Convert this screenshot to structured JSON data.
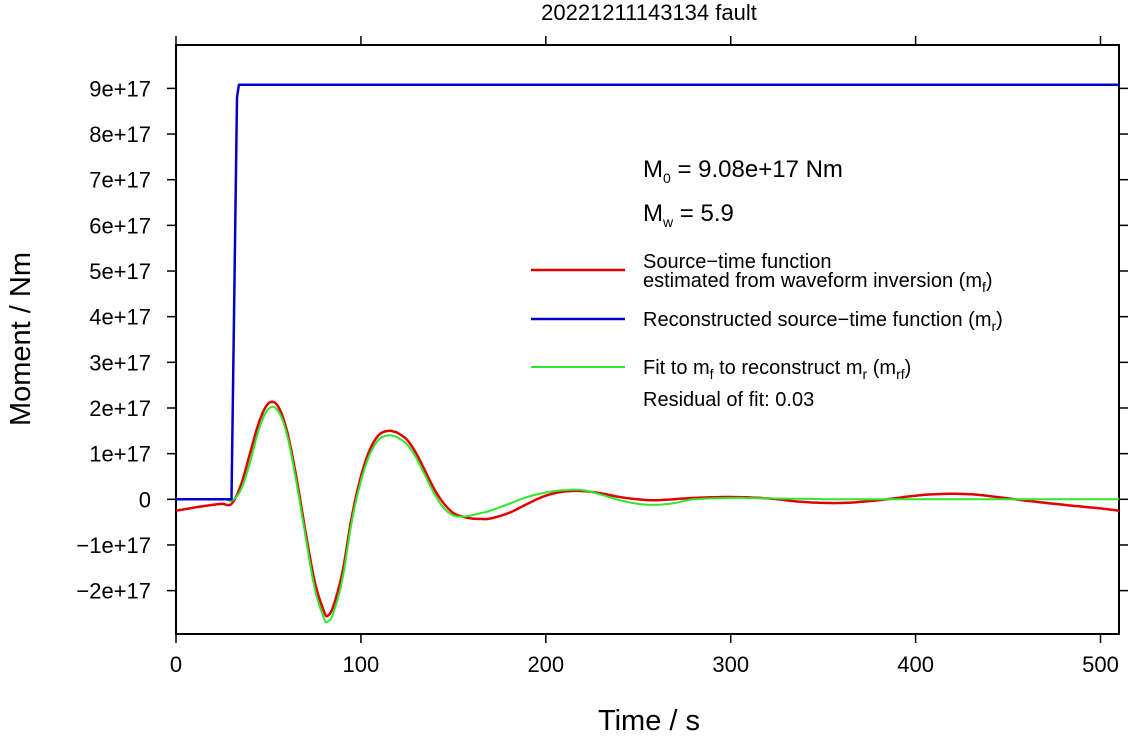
{
  "chart_data": {
    "type": "line",
    "title": "20221211143134 fault",
    "xlabel": "Time / s",
    "ylabel": "Moment / Nm",
    "xlim": [
      0,
      510
    ],
    "ylim": [
      -2.95e+17,
      9.95e+17
    ],
    "x_ticks": [
      0,
      100,
      200,
      300,
      400,
      500
    ],
    "x_tick_labels": [
      "0",
      "100",
      "200",
      "300",
      "400",
      "500"
    ],
    "y_ticks": [
      -2e+17,
      -1e+17,
      0,
      1e+17,
      2e+17,
      3e+17,
      4e+17,
      5e+17,
      6e+17,
      7e+17,
      8e+17,
      9e+17
    ],
    "y_tick_labels": [
      "−2e+17",
      "−1e+17",
      "0",
      "1e+17",
      "2e+17",
      "3e+17",
      "4e+17",
      "5e+17",
      "6e+17",
      "7e+17",
      "8e+17",
      "9e+17"
    ],
    "grid": false,
    "legend_position": "right",
    "annotations": {
      "m0": {
        "symbol": "M",
        "sub": "0",
        "text": " = 9.08e+17 Nm"
      },
      "mw": {
        "symbol": "M",
        "sub": "w",
        "text": " = 5.9"
      },
      "residual": "Residual of fit: 0.03"
    },
    "series": [
      {
        "key": "mf",
        "name_line1": "Source−time function",
        "name_line2": "estimated from waveform inversion (m",
        "name_sub": "f",
        "name_end": ")",
        "color": "#e00000",
        "x": [
          0,
          10,
          20,
          25,
          30,
          35,
          40,
          45,
          50,
          55,
          60,
          65,
          70,
          75,
          80,
          82,
          85,
          90,
          95,
          100,
          105,
          110,
          115,
          118,
          120,
          125,
          130,
          135,
          140,
          145,
          150,
          155,
          160,
          165,
          170,
          180,
          190,
          200,
          210,
          220,
          230,
          240,
          250,
          260,
          280,
          300,
          320,
          340,
          360,
          380,
          400,
          410,
          420,
          430,
          440,
          460,
          480,
          500,
          510
        ],
        "y": [
          -2.5e+16,
          -1.8e+16,
          -1.2e+16,
          -1e+16,
          -1e+16,
          3e+16,
          1e+17,
          1.7e+17,
          2.1e+17,
          2.05e+17,
          1.5e+17,
          5e+16,
          -7e+16,
          -1.8e+17,
          -2.45e+17,
          -2.55e+17,
          -2.35e+17,
          -1.6e+17,
          -4e+16,
          5e+16,
          1.1e+17,
          1.42e+17,
          1.5e+17,
          1.48e+17,
          1.45e+17,
          1.3e+17,
          1e+17,
          6e+16,
          2e+16,
          -1e+16,
          -3e+16,
          -3.8e+16,
          -4.2e+16,
          -4.3e+16,
          -4.2e+16,
          -3e+16,
          -1e+16,
          8000000000000000.0,
          1.7e+16,
          1.8e+16,
          1.3e+16,
          5000000000000000.0,
          0,
          -2000000000000000.0,
          3000000000000000.0,
          5000000000000000.0,
          2000000000000000.0,
          -6000000000000000.0,
          -8000000000000000.0,
          -2000000000000000.0,
          8000000000000000.0,
          1.1e+16,
          1.2e+16,
          1.1e+16,
          7000000000000000.0,
          -3000000000000000.0,
          -1.2e+16,
          -2e+16,
          -2.5e+16
        ]
      },
      {
        "key": "mr",
        "name": "Reconstructed source−time function (m",
        "name_sub": "r",
        "name_end": ")",
        "color": "#0000c8",
        "x": [
          0,
          30,
          33,
          34,
          510
        ],
        "y": [
          0,
          0,
          8.8e+17,
          9.08e+17,
          9.08e+17
        ]
      },
      {
        "key": "mrf",
        "name": "Fit to m",
        "name_sub": "f",
        "name_mid": " to reconstruct m",
        "name_sub2": "r",
        "name_mid2": " (m",
        "name_sub3": "rf",
        "name_end": ")",
        "color": "#2ee82e",
        "x": [
          0,
          25,
          30,
          35,
          40,
          45,
          50,
          55,
          60,
          65,
          70,
          75,
          80,
          82,
          85,
          90,
          95,
          100,
          105,
          110,
          115,
          118,
          120,
          125,
          130,
          135,
          140,
          145,
          150,
          155,
          160,
          165,
          170,
          180,
          190,
          200,
          210,
          220,
          230,
          240,
          250,
          260,
          270,
          280,
          300,
          320,
          340,
          360,
          400,
          450,
          510
        ],
        "y": [
          0,
          0,
          -3000000000000000.0,
          2e+16,
          8e+16,
          1.55e+17,
          1.98e+17,
          1.95e+17,
          1.42e+17,
          4e+16,
          -8e+16,
          -1.95e+17,
          -2.6e+17,
          -2.68e+17,
          -2.5e+17,
          -1.75e+17,
          -5e+16,
          4e+16,
          1e+17,
          1.32e+17,
          1.4e+17,
          1.38e+17,
          1.35e+17,
          1.2e+17,
          9e+16,
          5e+16,
          1e+16,
          -2e+16,
          -3.5e+16,
          -3.8e+16,
          -3.5e+16,
          -3e+16,
          -2.5e+16,
          -1e+16,
          5000000000000000.0,
          1.5e+16,
          2e+16,
          2e+16,
          1e+16,
          -2000000000000000.0,
          -1e+16,
          -1.2e+16,
          -8000000000000000.0,
          0,
          3000000000000000.0,
          2000000000000000.0,
          1000000000000000.0,
          0,
          0,
          0,
          0
        ]
      }
    ]
  }
}
